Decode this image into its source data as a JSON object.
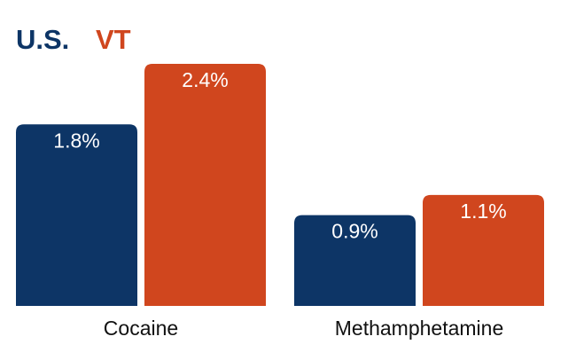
{
  "chart_data": {
    "type": "bar",
    "categories": [
      "Cocaine",
      "Methamphetamine"
    ],
    "series": [
      {
        "name": "U.S.",
        "color": "#0d3566",
        "values": [
          1.8,
          0.9
        ],
        "value_labels": [
          "1.8%",
          "0.9%"
        ]
      },
      {
        "name": "VT",
        "color": "#d0461e",
        "values": [
          2.4,
          1.1
        ],
        "value_labels": [
          "2.4%",
          "1.1%"
        ]
      }
    ]
  }
}
